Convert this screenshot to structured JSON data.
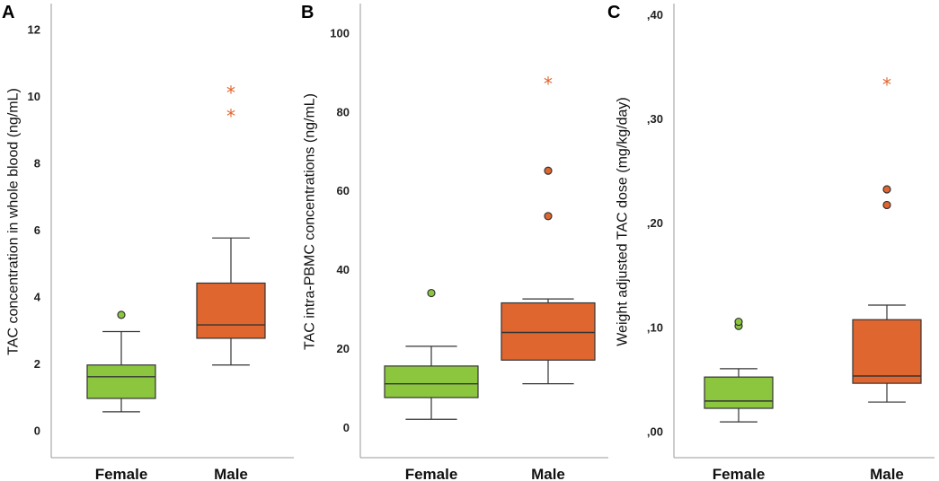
{
  "colors": {
    "female": "#8cc63f",
    "male": "#e0662f",
    "outlier_stroke": "#333333"
  },
  "chart_data": [
    {
      "type": "boxplot",
      "panel": "A",
      "ylabel": "TAC concentration in whole blood (ng/mL)",
      "ylim": [
        -0.5,
        12.6
      ],
      "yticks": [
        0,
        2,
        4,
        6,
        8,
        10,
        12
      ],
      "ytick_labels": [
        "0",
        "2",
        "4",
        "6",
        "8",
        "10",
        "12"
      ],
      "categories": [
        "Female",
        "Male"
      ],
      "boxes": [
        {
          "name": "Female",
          "whisker_low": 0.55,
          "q1": 0.95,
          "median": 1.6,
          "q3": 1.95,
          "whisker_high": 2.95,
          "outliers": [
            3.45
          ],
          "extremes": []
        },
        {
          "name": "Male",
          "whisker_low": 1.95,
          "q1": 2.75,
          "median": 3.15,
          "q3": 4.4,
          "whisker_high": 5.75,
          "outliers": [],
          "extremes": [
            9.45,
            10.15
          ]
        }
      ]
    },
    {
      "type": "boxplot",
      "panel": "B",
      "ylabel": "TAC intra-PBMC concentrations (ng/mL)",
      "ylim": [
        -5,
        106
      ],
      "yticks": [
        0,
        20,
        40,
        60,
        80,
        100
      ],
      "ytick_labels": [
        "0",
        "20",
        "40",
        "60",
        "80",
        "100"
      ],
      "categories": [
        "Female",
        "Male"
      ],
      "boxes": [
        {
          "name": "Female",
          "whisker_low": 2,
          "q1": 7.5,
          "median": 11,
          "q3": 15.5,
          "whisker_high": 20.5,
          "outliers": [
            34
          ],
          "extremes": []
        },
        {
          "name": "Male",
          "whisker_low": 11,
          "q1": 17,
          "median": 24,
          "q3": 31.5,
          "whisker_high": 32.5,
          "outliers": [
            53.5,
            65
          ],
          "extremes": [
            87.5
          ]
        }
      ]
    },
    {
      "type": "boxplot",
      "panel": "C",
      "ylabel": "Weight adjusted TAC dose (mg/kg/day)",
      "ylim": [
        -0.015,
        0.405
      ],
      "yticks": [
        0,
        0.1,
        0.2,
        0.3,
        0.4
      ],
      "ytick_labels": [
        ",00",
        ",10",
        ",20",
        ",30",
        ",40"
      ],
      "categories": [
        "Female",
        "Male"
      ],
      "boxes": [
        {
          "name": "Female",
          "whisker_low": 0.009,
          "q1": 0.022,
          "median": 0.029,
          "q3": 0.052,
          "whisker_high": 0.06,
          "outliers": [
            0.101,
            0.105
          ],
          "extremes": []
        },
        {
          "name": "Male",
          "whisker_low": 0.028,
          "q1": 0.046,
          "median": 0.053,
          "q3": 0.107,
          "whisker_high": 0.121,
          "outliers": [
            0.217,
            0.232
          ],
          "extremes": [
            0.334
          ]
        }
      ]
    }
  ]
}
